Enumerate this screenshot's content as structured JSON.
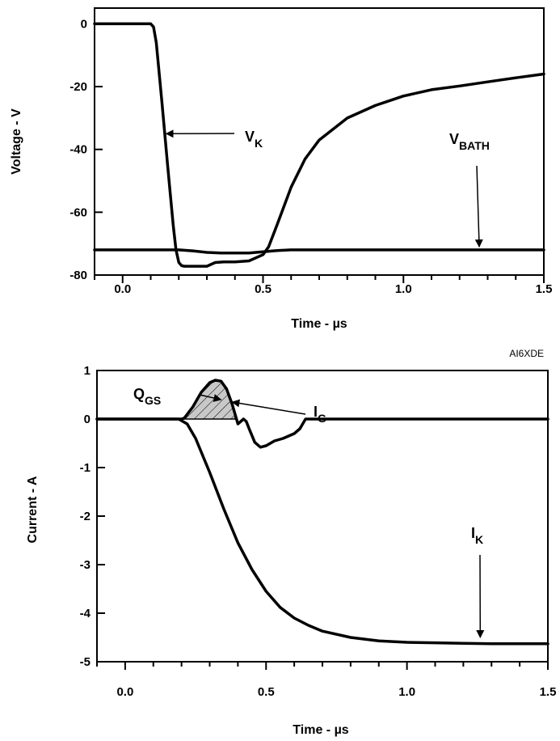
{
  "figure_id": "AI6XDE",
  "chart_data": [
    {
      "type": "line",
      "xlabel": "Time - µs",
      "ylabel": "Voltage - V",
      "xlim": [
        -0.1,
        1.5
      ],
      "ylim": [
        -80,
        5
      ],
      "xticks": [
        0.0,
        0.5,
        1.0,
        1.5
      ],
      "xtick_labels": [
        "0.0",
        "0.5",
        "1.0",
        "1.5"
      ],
      "yticks": [
        0,
        -20,
        -40,
        -60,
        -80
      ],
      "ytick_labels": [
        "0",
        "-20",
        "-40",
        "-60",
        "-80"
      ],
      "grid": false,
      "series": [
        {
          "name": "VK",
          "x": [
            -0.1,
            0.0,
            0.1,
            0.11,
            0.12,
            0.14,
            0.16,
            0.18,
            0.19,
            0.2,
            0.21,
            0.22,
            0.25,
            0.3,
            0.33,
            0.36,
            0.4,
            0.45,
            0.5,
            0.52,
            0.55,
            0.6,
            0.65,
            0.7,
            0.8,
            0.9,
            1.0,
            1.1,
            1.2,
            1.3,
            1.4,
            1.5
          ],
          "y": [
            0,
            0,
            0,
            -1,
            -6,
            -25,
            -45,
            -64,
            -72,
            -76,
            -77,
            -77.2,
            -77.2,
            -77.2,
            -76,
            -75.8,
            -75.8,
            -75.5,
            -73.5,
            -71,
            -64,
            -52,
            -43,
            -37,
            -30,
            -26,
            -23,
            -21,
            -19.8,
            -18.5,
            -17.2,
            -16
          ]
        },
        {
          "name": "VBATH",
          "x": [
            -0.1,
            0.0,
            0.2,
            0.25,
            0.3,
            0.35,
            0.4,
            0.45,
            0.5,
            0.55,
            0.6,
            0.7,
            0.8,
            1.0,
            1.2,
            1.5
          ],
          "y": [
            -72,
            -72,
            -72,
            -72.3,
            -72.8,
            -73,
            -73,
            -73,
            -72.6,
            -72.2,
            -72,
            -72,
            -72,
            -72,
            -72,
            -72
          ]
        }
      ],
      "annotations": [
        {
          "label": "V",
          "sub": "K",
          "points_to": {
            "x": 0.155,
            "y": -35
          }
        },
        {
          "label": "V",
          "sub": "BATH",
          "points_to": {
            "x": 1.27,
            "y": -71
          }
        }
      ]
    },
    {
      "type": "line",
      "xlabel": "Time - µs",
      "ylabel": "Current - A",
      "xlim": [
        -0.1,
        1.5
      ],
      "ylim": [
        -5,
        1
      ],
      "xticks": [
        0.0,
        0.5,
        1.0,
        1.5
      ],
      "xtick_labels": [
        "0.0",
        "0.5",
        "1.0",
        "1.5"
      ],
      "yticks": [
        1,
        0,
        -1,
        -2,
        -3,
        -4,
        -5
      ],
      "ytick_labels": [
        "1",
        "0",
        "-1",
        "-2",
        "-3",
        "-4",
        "-5"
      ],
      "grid": false,
      "series": [
        {
          "name": "IG",
          "x": [
            -0.1,
            0.0,
            0.1,
            0.2,
            0.21,
            0.24,
            0.27,
            0.3,
            0.32,
            0.34,
            0.36,
            0.38,
            0.39,
            0.4,
            0.41,
            0.42,
            0.43,
            0.44,
            0.46,
            0.48,
            0.5,
            0.53,
            0.56,
            0.6,
            0.62,
            0.64,
            0.66,
            0.8,
            1.0,
            1.5
          ],
          "y": [
            0,
            0,
            0,
            0,
            0.02,
            0.25,
            0.55,
            0.75,
            0.8,
            0.78,
            0.62,
            0.3,
            0.1,
            -0.1,
            -0.05,
            0.0,
            -0.05,
            -0.2,
            -0.48,
            -0.58,
            -0.55,
            -0.45,
            -0.4,
            -0.3,
            -0.2,
            0.0,
            0.0,
            0,
            0,
            0
          ]
        },
        {
          "name": "IK",
          "x": [
            -0.1,
            0.0,
            0.1,
            0.19,
            0.22,
            0.25,
            0.3,
            0.35,
            0.4,
            0.45,
            0.5,
            0.55,
            0.6,
            0.65,
            0.7,
            0.8,
            0.9,
            1.0,
            1.1,
            1.2,
            1.3,
            1.4,
            1.5
          ],
          "y": [
            0,
            0,
            0,
            0,
            -0.1,
            -0.4,
            -1.1,
            -1.85,
            -2.55,
            -3.1,
            -3.55,
            -3.88,
            -4.1,
            -4.25,
            -4.37,
            -4.5,
            -4.57,
            -4.6,
            -4.61,
            -4.62,
            -4.63,
            -4.63,
            -4.63
          ]
        }
      ],
      "filled_region": {
        "label": "QGS",
        "series": "IG",
        "x_range": [
          0.2,
          0.39
        ],
        "fill": "#c8c8c8",
        "hatch": true
      },
      "annotations": [
        {
          "label": "Q",
          "sub": "GS",
          "points_to": {
            "x": 0.34,
            "y": 0.4
          }
        },
        {
          "label": "I",
          "sub": "G",
          "points_to": {
            "x": 0.38,
            "y": 0.35
          }
        },
        {
          "label": "I",
          "sub": "K",
          "points_to": {
            "x": 1.26,
            "y": -4.5
          }
        }
      ]
    }
  ],
  "colors": {
    "line": "#000000",
    "fill": "#c8c8c8",
    "background": "#ffffff"
  }
}
